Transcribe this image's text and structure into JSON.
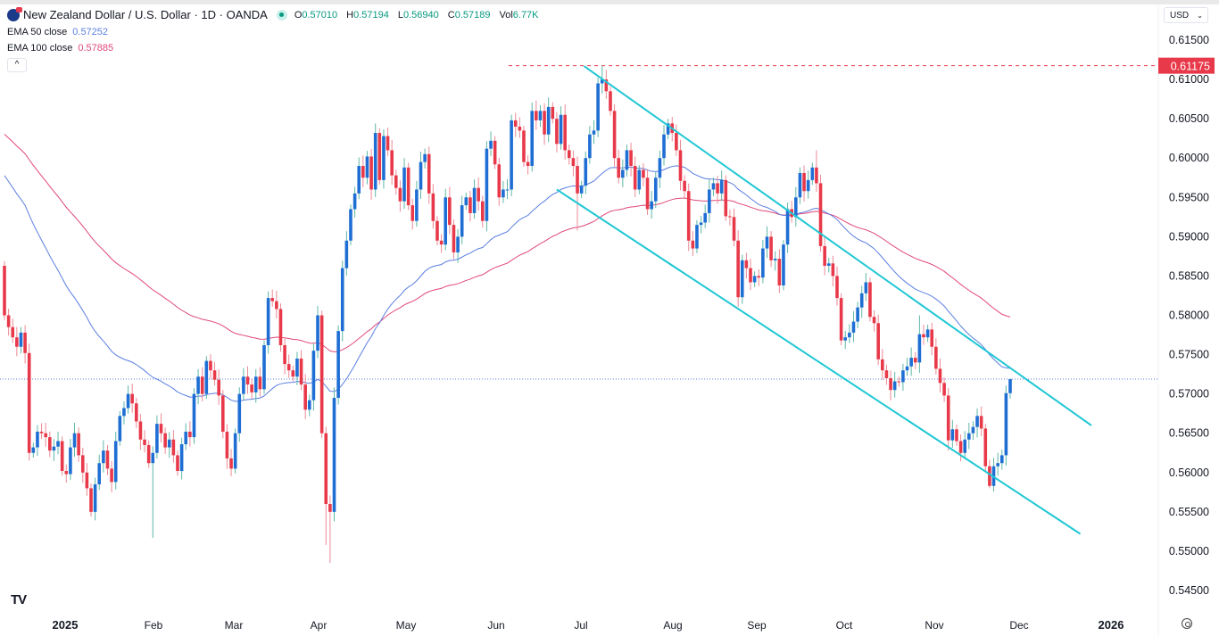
{
  "header": {
    "title": "New Zealand Dollar / U.S. Dollar · 1D · OANDA",
    "ohlc": {
      "o_label": "O",
      "o": "0.57010",
      "h_label": "H",
      "h": "0.57194",
      "l_label": "L",
      "l": "0.56940",
      "c_label": "C",
      "c": "0.57189",
      "vol_label": "Vol",
      "vol": "6.77K"
    },
    "indicators": [
      {
        "label": "EMA 50 close",
        "value": "0.57252",
        "color": "#5b7fe0"
      },
      {
        "label": "EMA 100 close",
        "value": "0.57885",
        "color": "#e0487a"
      }
    ],
    "collapse_icon": "chevron-up-icon",
    "currency": "USD"
  },
  "colors": {
    "up": "#1f6ed4",
    "down": "#e8394a",
    "channel": "#1fc7d4",
    "ema50": "#5b7fe0",
    "ema100": "#e0487a",
    "marker": "#e8394a",
    "current": "#5b7fe0"
  },
  "chart_data": {
    "type": "candlestick",
    "symbol": "NZDUSD",
    "timeframe": "1D",
    "ylim": [
      0.543,
      0.6165
    ],
    "y_ticks": [
      "0.61500",
      "0.61000",
      "0.60500",
      "0.60000",
      "0.59500",
      "0.59000",
      "0.58500",
      "0.58000",
      "0.57500",
      "0.57000",
      "0.56500",
      "0.56000",
      "0.55500",
      "0.55000",
      "0.54500"
    ],
    "x_ticks": [
      "2025",
      "Feb",
      "Mar",
      "Apr",
      "May",
      "Jun",
      "Jul",
      "Aug",
      "Sep",
      "Oct",
      "Nov",
      "Dec",
      "2026"
    ],
    "first_open": 0.5863,
    "close": [
      0.58,
      0.5785,
      0.5772,
      0.576,
      0.5778,
      0.5752,
      0.5625,
      0.5632,
      0.5652,
      0.565,
      0.5645,
      0.5628,
      0.5633,
      0.564,
      0.5602,
      0.5598,
      0.5632,
      0.565,
      0.5622,
      0.56,
      0.558,
      0.555,
      0.5585,
      0.5612,
      0.5628,
      0.5605,
      0.5588,
      0.564,
      0.5672,
      0.5682,
      0.57,
      0.5688,
      0.5665,
      0.5642,
      0.5635,
      0.5612,
      0.5625,
      0.5662,
      0.565,
      0.5632,
      0.5642,
      0.5622,
      0.5602,
      0.5636,
      0.5652,
      0.5645,
      0.57,
      0.5722,
      0.57,
      0.5742,
      0.573,
      0.5718,
      0.5698,
      0.5652,
      0.5618,
      0.5605,
      0.565,
      0.57,
      0.5722,
      0.5712,
      0.5702,
      0.5722,
      0.5706,
      0.5762,
      0.5822,
      0.5818,
      0.5808,
      0.5762,
      0.5738,
      0.573,
      0.5722,
      0.5745,
      0.5712,
      0.568,
      0.5692,
      0.5755,
      0.58,
      0.565,
      0.556,
      0.555,
      0.5695,
      0.578,
      0.586,
      0.5895,
      0.5935,
      0.5955,
      0.599,
      0.5975,
      0.6002,
      0.596,
      0.6032,
      0.5972,
      0.6028,
      0.601,
      0.5978,
      0.5962,
      0.5945,
      0.5988,
      0.594,
      0.592,
      0.596,
      0.5995,
      0.6005,
      0.5955,
      0.592,
      0.5895,
      0.589,
      0.595,
      0.5915,
      0.588,
      0.59,
      0.594,
      0.595,
      0.593,
      0.5962,
      0.5945,
      0.592,
      0.6012,
      0.6022,
      0.5992,
      0.595,
      0.596,
      0.596,
      0.6048,
      0.604,
      0.6035,
      0.5995,
      0.599,
      0.606,
      0.6048,
      0.606,
      0.603,
      0.6065,
      0.605,
      0.6018,
      0.6055,
      0.601,
      0.6,
      0.599,
      0.5955,
      0.5965,
      0.6,
      0.603,
      0.6035,
      0.6095,
      0.61,
      0.6085,
      0.606,
      0.6,
      0.5975,
      0.5985,
      0.601,
      0.599,
      0.596,
      0.5985,
      0.5975,
      0.5935,
      0.5945,
      0.5975,
      0.6,
      0.603,
      0.6044,
      0.6032,
      0.601,
      0.5971,
      0.5958,
      0.5895,
      0.5885,
      0.5915,
      0.5918,
      0.593,
      0.596,
      0.5968,
      0.5955,
      0.5972,
      0.5926,
      0.5925,
      0.5895,
      0.5823,
      0.587,
      0.586,
      0.5842,
      0.585,
      0.5848,
      0.5885,
      0.59,
      0.587,
      0.5872,
      0.5838,
      0.589,
      0.5935,
      0.5925,
      0.595,
      0.5981,
      0.5958,
      0.5972,
      0.5988,
      0.5968,
      0.5888,
      0.5863,
      0.5866,
      0.585,
      0.5822,
      0.5768,
      0.5772,
      0.5778,
      0.5792,
      0.581,
      0.5828,
      0.5842,
      0.5798,
      0.579,
      0.5744,
      0.573,
      0.572,
      0.5705,
      0.5716,
      0.5715,
      0.573,
      0.5735,
      0.5746,
      0.574,
      0.5776,
      0.5772,
      0.5782,
      0.576,
      0.5732,
      0.5714,
      0.5698,
      0.5641,
      0.5655,
      0.564,
      0.5625,
      0.5642,
      0.565,
      0.5658,
      0.5672,
      0.5656,
      0.5608,
      0.5583,
      0.5608,
      0.5612,
      0.5622,
      0.5701,
      0.57189
    ],
    "last_bar": {
      "open": 0.5701,
      "high": 0.57194,
      "low": 0.5694,
      "close": 0.57189
    },
    "notable_wicks": [
      {
        "bar": 36,
        "low": 0.5517
      },
      {
        "bar": 78,
        "low": 0.5508
      },
      {
        "bar": 79,
        "low": 0.5485
      },
      {
        "bar": 139,
        "low": 0.5908
      },
      {
        "bar": 145,
        "high": 0.61175
      },
      {
        "bar": 197,
        "high": 0.601
      },
      {
        "bar": 222,
        "high": 0.58
      },
      {
        "bar": 239,
        "low": 0.558
      }
    ],
    "ema50_last": 0.57252,
    "ema100_last": 0.57885,
    "horizontal_level": {
      "value": 0.61175,
      "label": "0.61175"
    },
    "current_price": 0.57189,
    "channel": {
      "upper": [
        [
          140.6,
          0.6117
        ],
        [
          263.7,
          0.566
        ]
      ],
      "lower": [
        [
          134.0,
          0.596
        ],
        [
          261.0,
          0.5522
        ]
      ]
    }
  }
}
